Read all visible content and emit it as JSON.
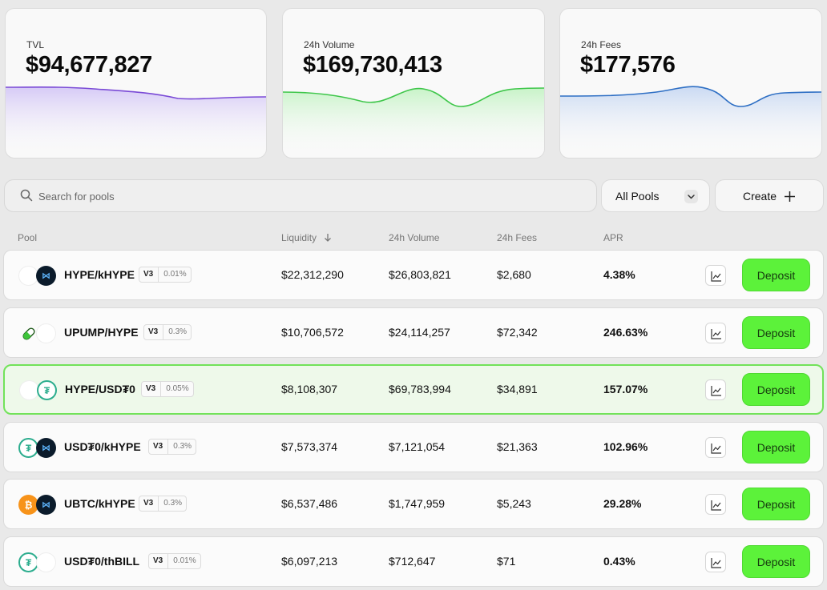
{
  "stats": {
    "tvl": {
      "label": "TVL",
      "value": "$94,677,827",
      "color": "#7a4ad6"
    },
    "volume": {
      "label": "24h Volume",
      "value": "$169,730,413",
      "color": "#3ec64a"
    },
    "fees": {
      "label": "24h Fees",
      "value": "$177,576",
      "color": "#2e6fc4"
    }
  },
  "search": {
    "placeholder": "Search for pools",
    "icon": "search-icon"
  },
  "filter": {
    "selected": "All Pools",
    "icon": "chevron-down-icon"
  },
  "create": {
    "label": "Create",
    "icon": "plus-icon"
  },
  "table": {
    "headers": {
      "pool": "Pool",
      "liquidity": "Liquidity",
      "volume": "24h Volume",
      "fees": "24h Fees",
      "apr": "APR"
    },
    "sort": {
      "column": "liquidity",
      "direction": "descending",
      "icon": "arrow-down-icon"
    },
    "deposit_label": "Deposit",
    "chart_icon": "line-chart-icon",
    "rows": [
      {
        "pair": "HYPE/kHYPE",
        "version": "V3",
        "fee_tier": "0.01%",
        "liquidity": "$22,312,290",
        "volume": "$26,803,821",
        "fees": "$2,680",
        "apr": "4.38%",
        "tokens": [
          "hype",
          "khype"
        ],
        "highlighted": false
      },
      {
        "pair": "UPUMP/HYPE",
        "version": "V3",
        "fee_tier": "0.3%",
        "liquidity": "$10,706,572",
        "volume": "$24,114,257",
        "fees": "$72,342",
        "apr": "246.63%",
        "tokens": [
          "upump",
          "hype"
        ],
        "highlighted": false
      },
      {
        "pair": "HYPE/USD₮0",
        "version": "V3",
        "fee_tier": "0.05%",
        "liquidity": "$8,108,307",
        "volume": "$69,783,994",
        "fees": "$34,891",
        "apr": "157.07%",
        "tokens": [
          "hype",
          "usdt"
        ],
        "highlighted": true
      },
      {
        "pair": "USD₮0/kHYPE",
        "version": "V3",
        "fee_tier": "0.3%",
        "liquidity": "$7,573,374",
        "volume": "$7,121,054",
        "fees": "$21,363",
        "apr": "102.96%",
        "tokens": [
          "usdt",
          "khype"
        ],
        "highlighted": false
      },
      {
        "pair": "UBTC/kHYPE",
        "version": "V3",
        "fee_tier": "0.3%",
        "liquidity": "$6,537,486",
        "volume": "$1,747,959",
        "fees": "$5,243",
        "apr": "29.28%",
        "tokens": [
          "btc",
          "khype"
        ],
        "highlighted": false
      },
      {
        "pair": "USD₮0/thBILL",
        "version": "V3",
        "fee_tier": "0.01%",
        "liquidity": "$6,097,213",
        "volume": "$712,647",
        "fees": "$71",
        "apr": "0.43%",
        "tokens": [
          "usdt",
          "thbill"
        ],
        "highlighted": false
      }
    ]
  }
}
